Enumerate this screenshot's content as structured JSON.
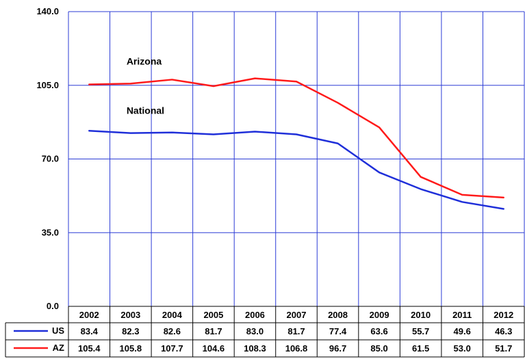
{
  "chart_data": {
    "type": "line",
    "title": "",
    "xlabel": "",
    "ylabel": "",
    "ylim": [
      0,
      140
    ],
    "yticks": [
      "140.0",
      "105.0",
      "70.0",
      "35.0",
      "0.0"
    ],
    "ytick_values": [
      140,
      105,
      70,
      35,
      0
    ],
    "grid": true,
    "categories": [
      "2002",
      "2003",
      "2004",
      "2005",
      "2006",
      "2007",
      "2008",
      "2009",
      "2010",
      "2011",
      "2012"
    ],
    "series": [
      {
        "name": "US",
        "label": "National",
        "color": "#1f2fd9",
        "values": [
          83.4,
          82.3,
          82.6,
          81.7,
          83.0,
          81.7,
          77.4,
          63.6,
          55.7,
          49.6,
          46.3
        ],
        "display": [
          "83.4",
          "82.3",
          "82.6",
          "81.7",
          "83.0",
          "81.7",
          "77.4",
          "63.6",
          "55.7",
          "49.6",
          "46.3"
        ]
      },
      {
        "name": "AZ",
        "label": "Arizona",
        "color": "#ff1a1a",
        "values": [
          105.4,
          105.8,
          107.7,
          104.6,
          108.3,
          106.8,
          96.7,
          85.0,
          61.5,
          53.0,
          51.7
        ],
        "display": [
          "105.4",
          "105.8",
          "107.7",
          "104.6",
          "108.3",
          "106.8",
          "96.7",
          "85.0",
          "61.5",
          "53.0",
          "51.7"
        ]
      }
    ],
    "grid_color": "#2b3bd6",
    "table_border_color": "#000000"
  }
}
